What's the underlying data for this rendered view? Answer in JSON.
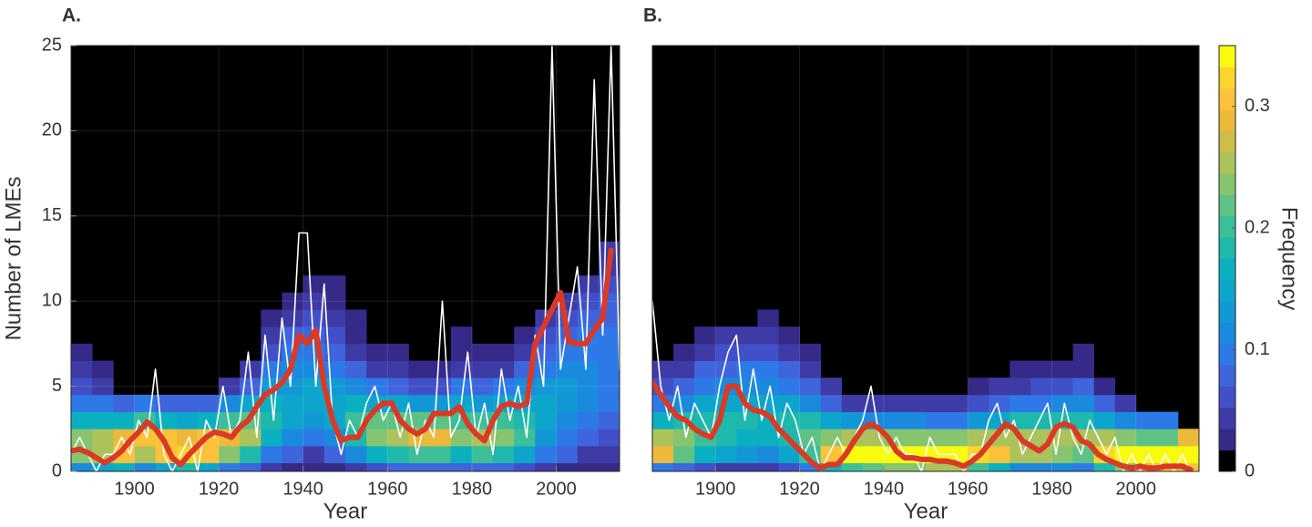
{
  "chart_data": [
    {
      "type": "heatmap",
      "title": "A.",
      "xlabel": "Year",
      "ylabel": "Number of LMEs",
      "xlim": [
        1885,
        2015
      ],
      "ylim": [
        0,
        25
      ],
      "xticks": [
        1900,
        1920,
        1940,
        1960,
        1980,
        2000
      ],
      "yticks": [
        0,
        5,
        10,
        15,
        20,
        25
      ],
      "grid": true,
      "bins": [
        1885,
        1890,
        1895,
        1900,
        1905,
        1910,
        1915,
        1920,
        1925,
        1930,
        1935,
        1940,
        1945,
        1950,
        1955,
        1960,
        1965,
        1970,
        1975,
        1980,
        1985,
        1990,
        1995,
        2000,
        2005,
        2010,
        2015
      ],
      "frequency": [
        [
          0.12,
          0.24,
          0.24,
          0.16,
          0.1,
          0.06,
          0.04,
          0.03
        ],
        [
          0.14,
          0.26,
          0.25,
          0.16,
          0.1,
          0.05,
          0.03
        ],
        [
          0.16,
          0.3,
          0.28,
          0.16,
          0.08
        ],
        [
          0.12,
          0.26,
          0.3,
          0.2,
          0.1
        ],
        [
          0.14,
          0.3,
          0.3,
          0.17,
          0.08
        ],
        [
          0.18,
          0.32,
          0.28,
          0.14,
          0.07
        ],
        [
          0.14,
          0.3,
          0.3,
          0.16,
          0.08
        ],
        [
          0.1,
          0.24,
          0.28,
          0.2,
          0.12,
          0.05
        ],
        [
          0.08,
          0.18,
          0.26,
          0.22,
          0.14,
          0.08,
          0.04
        ],
        [
          0.04,
          0.1,
          0.16,
          0.19,
          0.17,
          0.13,
          0.09,
          0.06,
          0.04,
          0.02
        ],
        [
          0.03,
          0.07,
          0.12,
          0.15,
          0.15,
          0.13,
          0.11,
          0.09,
          0.07,
          0.05,
          0.03
        ],
        [
          0.02,
          0.05,
          0.1,
          0.13,
          0.14,
          0.14,
          0.12,
          0.1,
          0.08,
          0.06,
          0.04,
          0.02
        ],
        [
          0.03,
          0.07,
          0.12,
          0.15,
          0.15,
          0.13,
          0.1,
          0.08,
          0.06,
          0.05,
          0.03,
          0.02
        ],
        [
          0.05,
          0.12,
          0.18,
          0.2,
          0.16,
          0.11,
          0.08,
          0.05,
          0.03,
          0.02
        ],
        [
          0.06,
          0.16,
          0.24,
          0.22,
          0.15,
          0.09,
          0.05,
          0.03
        ],
        [
          0.07,
          0.18,
          0.26,
          0.22,
          0.14,
          0.08,
          0.04,
          0.02
        ],
        [
          0.08,
          0.2,
          0.28,
          0.22,
          0.13,
          0.06,
          0.03
        ],
        [
          0.08,
          0.2,
          0.28,
          0.22,
          0.13,
          0.06,
          0.03
        ],
        [
          0.07,
          0.17,
          0.24,
          0.2,
          0.14,
          0.09,
          0.05,
          0.03,
          0.02
        ],
        [
          0.08,
          0.2,
          0.26,
          0.2,
          0.13,
          0.07,
          0.04,
          0.02
        ],
        [
          0.07,
          0.18,
          0.24,
          0.2,
          0.14,
          0.09,
          0.05,
          0.03
        ],
        [
          0.06,
          0.14,
          0.2,
          0.19,
          0.15,
          0.11,
          0.07,
          0.05,
          0.03
        ],
        [
          0.04,
          0.09,
          0.13,
          0.15,
          0.15,
          0.13,
          0.1,
          0.08,
          0.06,
          0.04
        ],
        [
          0.03,
          0.07,
          0.1,
          0.12,
          0.13,
          0.13,
          0.11,
          0.09,
          0.08,
          0.06,
          0.05
        ],
        [
          0.02,
          0.05,
          0.08,
          0.1,
          0.11,
          0.12,
          0.11,
          0.1,
          0.09,
          0.07,
          0.06,
          0.05
        ],
        [
          0.02,
          0.04,
          0.06,
          0.08,
          0.09,
          0.1,
          0.1,
          0.1,
          0.09,
          0.08,
          0.07,
          0.06,
          0.05,
          0.04
        ]
      ],
      "x": [
        1885,
        1887,
        1889,
        1891,
        1893,
        1895,
        1897,
        1899,
        1901,
        1903,
        1905,
        1907,
        1909,
        1911,
        1913,
        1915,
        1917,
        1919,
        1921,
        1923,
        1925,
        1927,
        1929,
        1931,
        1933,
        1935,
        1937,
        1939,
        1941,
        1943,
        1945,
        1947,
        1949,
        1951,
        1953,
        1955,
        1957,
        1959,
        1961,
        1963,
        1965,
        1967,
        1969,
        1971,
        1973,
        1975,
        1977,
        1979,
        1981,
        1983,
        1985,
        1987,
        1989,
        1991,
        1993,
        1995,
        1997,
        1999,
        2001,
        2003,
        2005,
        2007,
        2009,
        2011,
        2013,
        2015
      ],
      "series": [
        {
          "color": "#ffffff",
          "values": [
            1,
            2,
            1,
            0,
            1,
            1,
            2,
            1,
            3,
            2,
            6,
            1,
            0,
            1,
            2,
            0,
            3,
            2,
            5,
            2,
            3,
            7,
            2,
            8,
            3,
            9,
            5,
            14,
            14,
            5,
            11,
            3,
            1,
            3,
            2,
            4,
            5,
            3,
            4,
            2,
            4,
            1,
            3,
            2,
            10,
            2,
            3,
            7,
            2,
            4,
            1,
            6,
            3,
            5,
            2,
            8,
            5,
            25,
            6,
            9,
            12,
            6,
            23,
            8,
            25,
            6
          ]
        },
        {
          "color": "#d93a26",
          "values": [
            1.2,
            1.3,
            1.1,
            0.8,
            0.5,
            0.8,
            1.2,
            1.8,
            2.3,
            2.9,
            2.5,
            1.8,
            0.8,
            0.4,
            1.0,
            1.5,
            2.0,
            2.3,
            2.2,
            2.0,
            2.6,
            3.0,
            3.8,
            4.5,
            4.8,
            5.2,
            6.0,
            8.0,
            7.5,
            8.3,
            5.0,
            3.0,
            1.8,
            2.0,
            2.0,
            3.0,
            3.6,
            4.0,
            4.0,
            3.0,
            2.5,
            2.2,
            2.5,
            3.4,
            3.4,
            3.4,
            3.8,
            2.8,
            2.2,
            1.8,
            3.0,
            3.8,
            4.0,
            3.8,
            4.0,
            7.5,
            8.5,
            9.5,
            10.5,
            7.6,
            7.5,
            7.5,
            8.3,
            9.0,
            13.0,
            null
          ]
        }
      ]
    },
    {
      "type": "heatmap",
      "title": "B.",
      "xlabel": "Year",
      "xlim": [
        1885,
        2015
      ],
      "ylim": [
        0,
        25
      ],
      "xticks": [
        1900,
        1920,
        1940,
        1960,
        1980,
        2000
      ],
      "grid": true,
      "bins": [
        1885,
        1890,
        1895,
        1900,
        1905,
        1910,
        1915,
        1920,
        1925,
        1930,
        1935,
        1940,
        1945,
        1950,
        1955,
        1960,
        1965,
        1970,
        1975,
        1980,
        1985,
        1990,
        1995,
        2000,
        2005,
        2010,
        2015
      ],
      "frequency": [
        [
          0.1,
          0.28,
          0.26,
          0.16,
          0.1,
          0.06,
          0.04
        ],
        [
          0.08,
          0.22,
          0.24,
          0.18,
          0.12,
          0.08,
          0.05,
          0.03
        ],
        [
          0.06,
          0.16,
          0.2,
          0.18,
          0.14,
          0.1,
          0.07,
          0.05,
          0.03
        ],
        [
          0.05,
          0.14,
          0.18,
          0.18,
          0.15,
          0.11,
          0.08,
          0.06,
          0.04
        ],
        [
          0.05,
          0.13,
          0.17,
          0.18,
          0.15,
          0.12,
          0.09,
          0.06,
          0.04
        ],
        [
          0.05,
          0.12,
          0.16,
          0.17,
          0.15,
          0.12,
          0.09,
          0.06,
          0.04,
          0.03
        ],
        [
          0.06,
          0.15,
          0.19,
          0.18,
          0.14,
          0.1,
          0.08,
          0.05,
          0.03
        ],
        [
          0.1,
          0.2,
          0.22,
          0.18,
          0.12,
          0.08,
          0.05,
          0.03
        ],
        [
          0.16,
          0.3,
          0.24,
          0.14,
          0.08,
          0.04
        ],
        [
          0.2,
          0.34,
          0.26,
          0.13,
          0.05
        ],
        [
          0.22,
          0.34,
          0.25,
          0.12,
          0.05
        ],
        [
          0.24,
          0.35,
          0.24,
          0.11,
          0.04
        ],
        [
          0.24,
          0.35,
          0.24,
          0.11,
          0.04
        ],
        [
          0.26,
          0.35,
          0.23,
          0.1,
          0.04
        ],
        [
          0.26,
          0.35,
          0.23,
          0.1,
          0.04
        ],
        [
          0.2,
          0.32,
          0.25,
          0.13,
          0.06,
          0.03
        ],
        [
          0.16,
          0.3,
          0.26,
          0.15,
          0.08,
          0.04
        ],
        [
          0.12,
          0.26,
          0.26,
          0.18,
          0.1,
          0.05,
          0.03
        ],
        [
          0.12,
          0.25,
          0.26,
          0.18,
          0.1,
          0.06,
          0.03
        ],
        [
          0.11,
          0.24,
          0.26,
          0.19,
          0.11,
          0.06,
          0.03
        ],
        [
          0.1,
          0.22,
          0.25,
          0.19,
          0.12,
          0.07,
          0.03,
          0.02
        ],
        [
          0.18,
          0.32,
          0.26,
          0.14,
          0.07,
          0.03
        ],
        [
          0.24,
          0.36,
          0.24,
          0.11,
          0.05
        ],
        [
          0.28,
          0.4,
          0.22,
          0.1
        ],
        [
          0.3,
          0.4,
          0.21,
          0.09
        ],
        [
          0.3,
          0.42,
          0.28
        ]
      ],
      "x": [
        1885,
        1887,
        1889,
        1891,
        1893,
        1895,
        1897,
        1899,
        1901,
        1903,
        1905,
        1907,
        1909,
        1911,
        1913,
        1915,
        1917,
        1919,
        1921,
        1923,
        1925,
        1927,
        1929,
        1931,
        1933,
        1935,
        1937,
        1939,
        1941,
        1943,
        1945,
        1947,
        1949,
        1951,
        1953,
        1955,
        1957,
        1959,
        1961,
        1963,
        1965,
        1967,
        1969,
        1971,
        1973,
        1975,
        1977,
        1979,
        1981,
        1983,
        1985,
        1987,
        1989,
        1991,
        1993,
        1995,
        1997,
        1999,
        2001,
        2003,
        2005,
        2007,
        2009,
        2011,
        2013,
        2015
      ],
      "series": [
        {
          "color": "#ffffff",
          "values": [
            10,
            5,
            3,
            5,
            2,
            4,
            3,
            2,
            5,
            7,
            8,
            3,
            6,
            3,
            5,
            2,
            4,
            3,
            1,
            2,
            0,
            1,
            2,
            1,
            2,
            3,
            5,
            2,
            1,
            2,
            1,
            1,
            0,
            2,
            1,
            1,
            1,
            0,
            1,
            1,
            3,
            4,
            2,
            3,
            1,
            2,
            3,
            4,
            1,
            4,
            2,
            1,
            3,
            2,
            1,
            2,
            0,
            1,
            0,
            1,
            0,
            1,
            0,
            1,
            0,
            0
          ]
        },
        {
          "color": "#d93a26",
          "values": [
            5.2,
            4.5,
            3.8,
            3.2,
            3.0,
            2.5,
            2.2,
            2.0,
            3.0,
            5.0,
            5.0,
            4.0,
            3.6,
            3.5,
            3.2,
            2.5,
            2.0,
            1.5,
            1.0,
            0.5,
            0.2,
            0.4,
            0.4,
            1.0,
            1.8,
            2.5,
            2.8,
            2.5,
            2.0,
            1.2,
            0.8,
            0.8,
            0.7,
            0.7,
            0.6,
            0.6,
            0.5,
            0.3,
            0.6,
            1.0,
            1.6,
            2.2,
            2.8,
            2.5,
            1.8,
            1.5,
            1.2,
            1.6,
            2.6,
            2.8,
            2.6,
            1.8,
            1.6,
            1.0,
            0.7,
            0.5,
            0.3,
            0.2,
            0.3,
            0.2,
            0.2,
            0.3,
            0.3,
            0.3,
            0.1,
            null
          ]
        }
      ]
    }
  ],
  "colorbar": {
    "label": "Frequency",
    "clim": [
      0,
      0.35
    ],
    "ticks": [
      0,
      0.1,
      0.2,
      0.3
    ],
    "colormap": [
      "#000000",
      "#352a87",
      "#3e3ba6",
      "#4150c8",
      "#3f65dc",
      "#2d79e8",
      "#1a8ade",
      "#1398d6",
      "#0ea5cc",
      "#0bb0c0",
      "#1eb8ad",
      "#3cbe99",
      "#5fc285",
      "#86c46f",
      "#acc25b",
      "#cebd48",
      "#ecb93a",
      "#fcc33a",
      "#f9d62e",
      "#f9fb0e"
    ]
  }
}
